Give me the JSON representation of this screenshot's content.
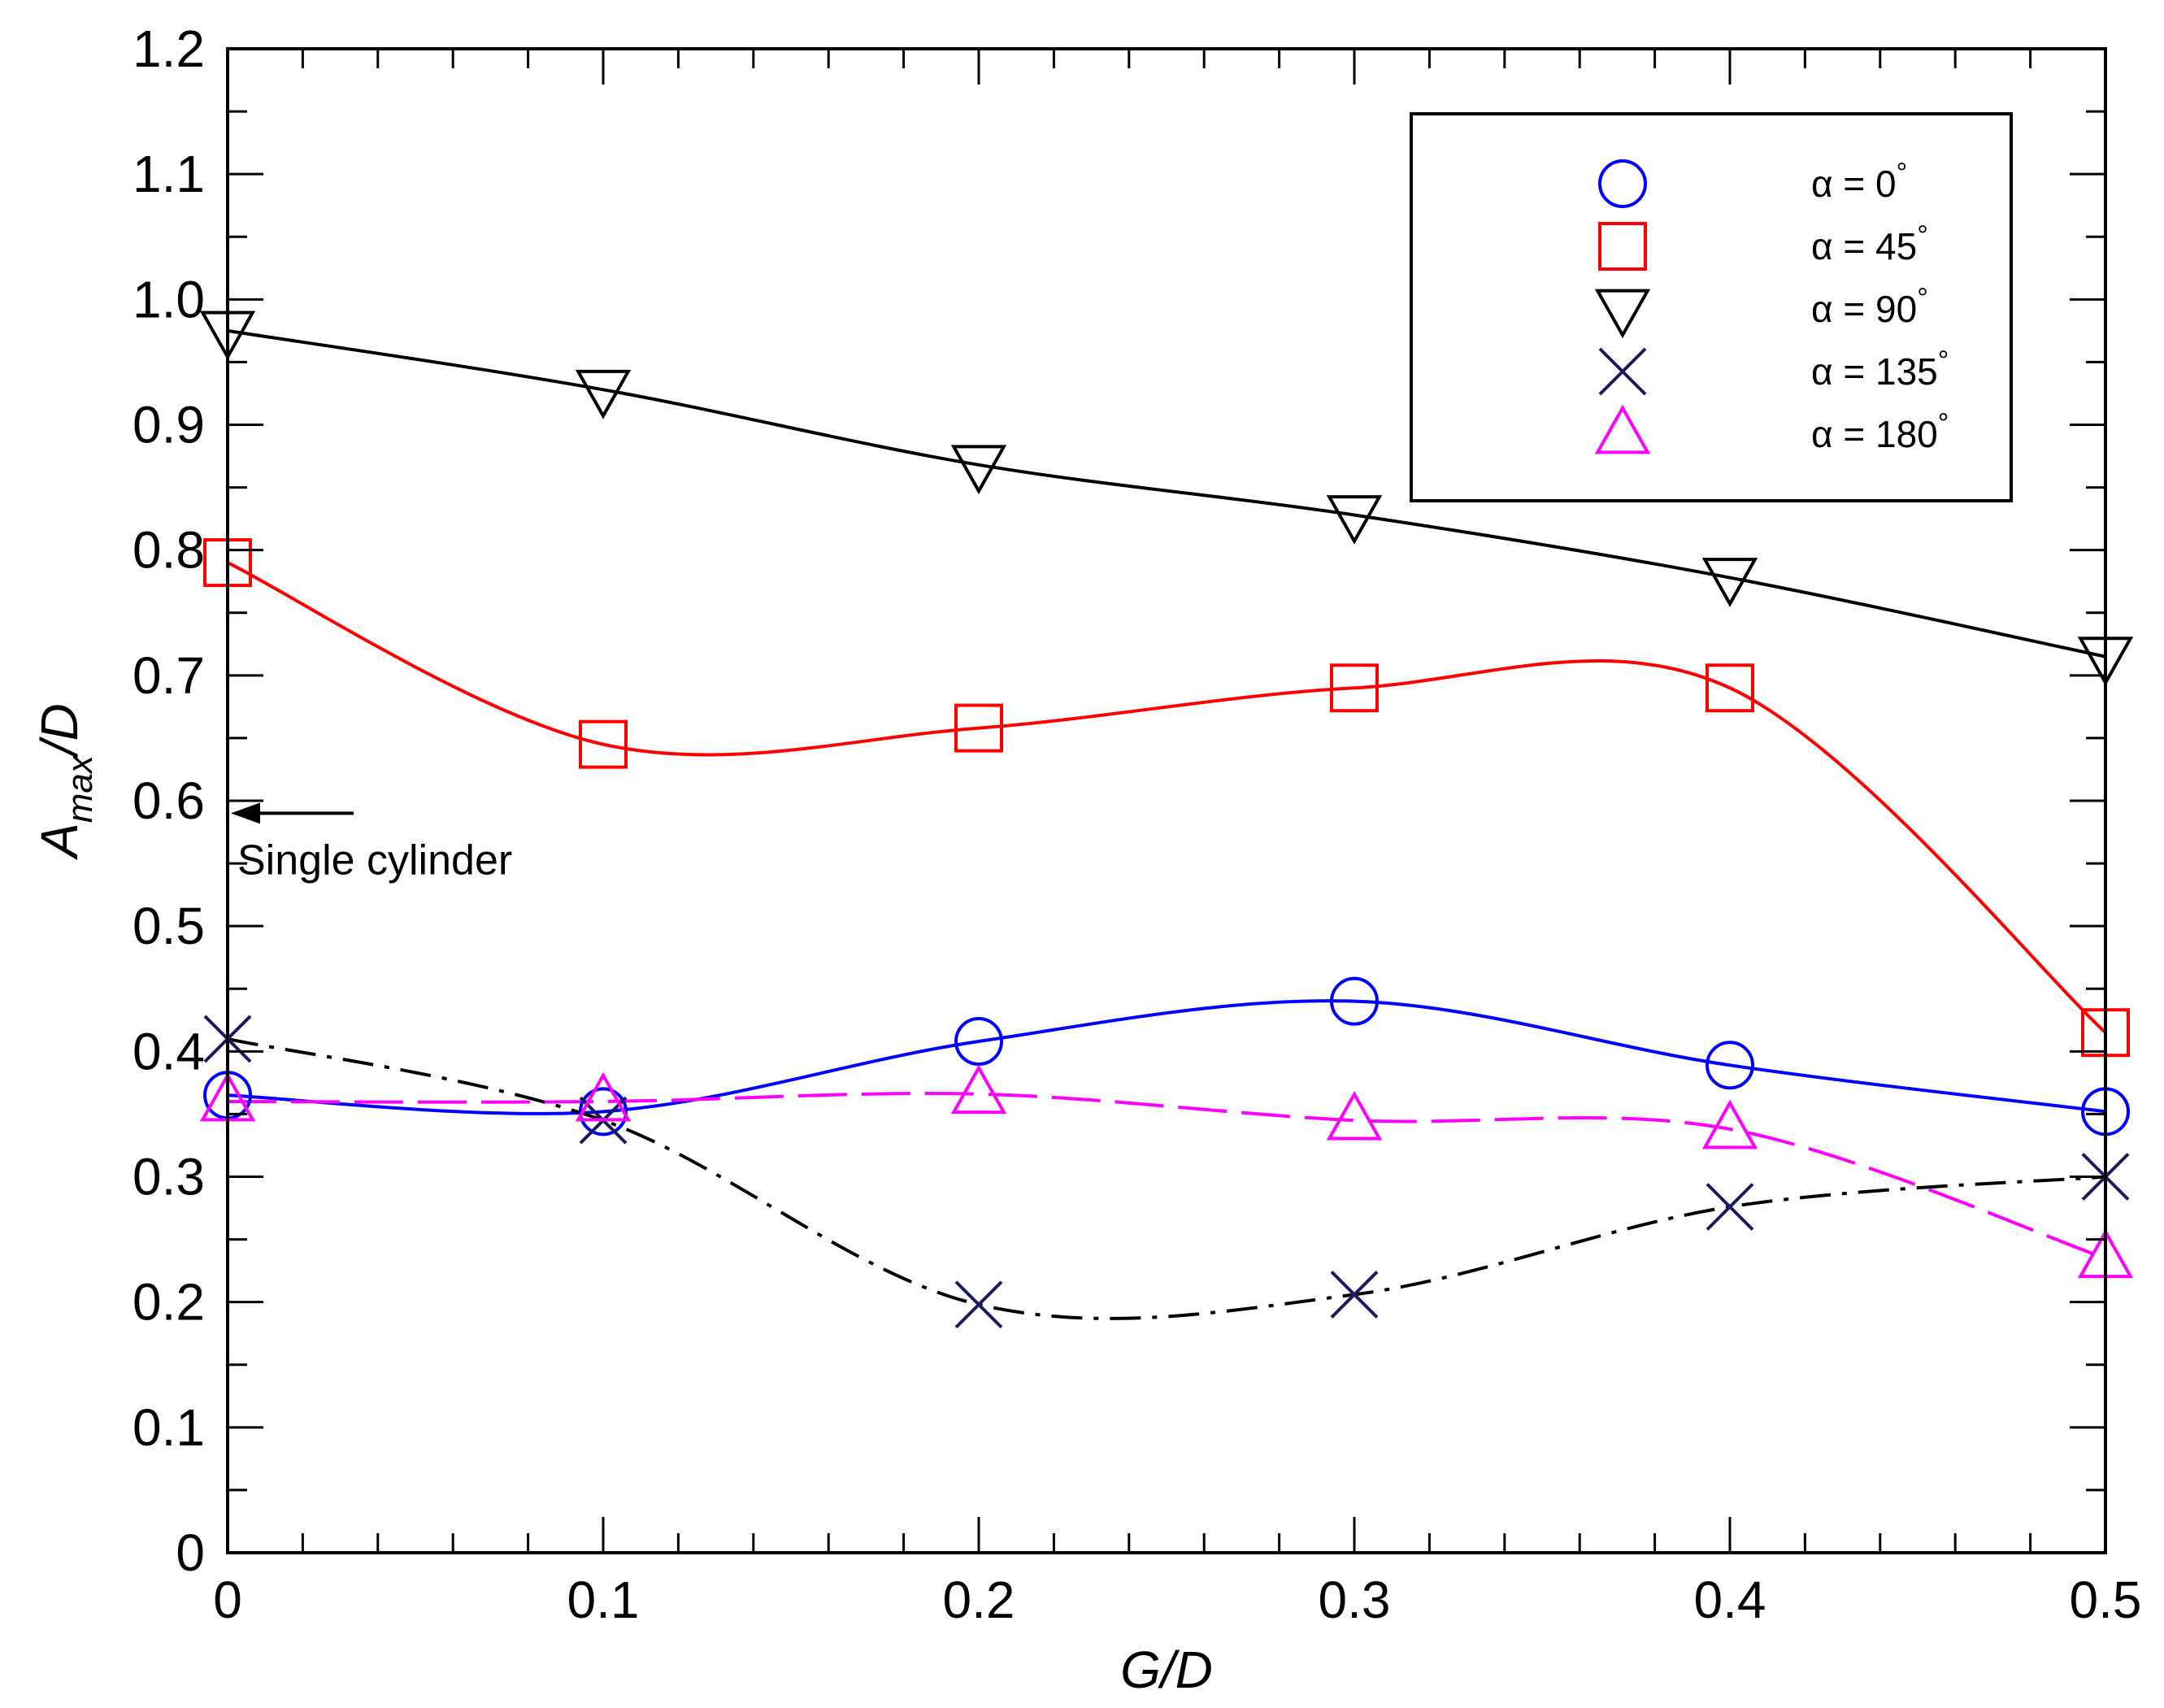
{
  "chart_data": {
    "type": "line",
    "title": "",
    "xlabel": "G/D",
    "ylabel": "A",
    "ylabel_sub": "max",
    "ylabel_tail": "/D",
    "xlim": [
      0,
      0.5
    ],
    "ylim": [
      0,
      1.2
    ],
    "x_ticks": [
      0,
      0.1,
      0.2,
      0.3,
      0.4,
      0.5
    ],
    "x_tick_labels": [
      "0",
      "0.1",
      "0.2",
      "0.3",
      "0.4",
      "0.5"
    ],
    "y_ticks": [
      0,
      0.1,
      0.2,
      0.3,
      0.4,
      0.5,
      0.6,
      0.7,
      0.8,
      0.9,
      1.0,
      1.1,
      1.2
    ],
    "y_tick_labels": [
      "0",
      "0.1",
      "0.2",
      "0.3",
      "0.4",
      "0.5",
      "0.6",
      "0.7",
      "0.8",
      "0.9",
      "1.0",
      "1.1",
      "1.2"
    ],
    "x_minor_step": 0.02,
    "y_minor_step": 0.05,
    "grid": false,
    "legend_position": "top-right",
    "x": [
      0,
      0.1,
      0.2,
      0.3,
      0.4,
      0.5
    ],
    "series": [
      {
        "name": "α = 0",
        "degree": "°",
        "marker": "circle",
        "color": "#0000ff",
        "dash": "",
        "values": [
          0.365,
          0.352,
          0.408,
          0.44,
          0.389,
          0.352
        ]
      },
      {
        "name": "α = 45",
        "degree": "°",
        "marker": "square",
        "color": "#ff0000",
        "dash": "",
        "values": [
          0.79,
          0.645,
          0.658,
          0.69,
          0.69,
          0.415
        ]
      },
      {
        "name": "α = 90",
        "degree": "°",
        "marker": "triangle-down",
        "color": "#000000",
        "dash": "",
        "values": [
          0.975,
          0.928,
          0.868,
          0.828,
          0.778,
          0.715
        ]
      },
      {
        "name": "α = 135",
        "degree": "°",
        "marker": "x",
        "color": "#1a1a5c",
        "line_color": "#000000",
        "dash": "38 14 6 14",
        "values": [
          0.41,
          0.345,
          0.198,
          0.206,
          0.276,
          0.3
        ]
      },
      {
        "name": "α = 180",
        "degree": "°",
        "marker": "triangle-up",
        "color": "#ff00ff",
        "dash": "60 18",
        "values": [
          0.36,
          0.36,
          0.366,
          0.345,
          0.338,
          0.235
        ]
      }
    ],
    "annotations": [
      {
        "text": "Single cylinder",
        "arrow_to_x": 0,
        "arrow_to_y": 0.59
      }
    ]
  }
}
